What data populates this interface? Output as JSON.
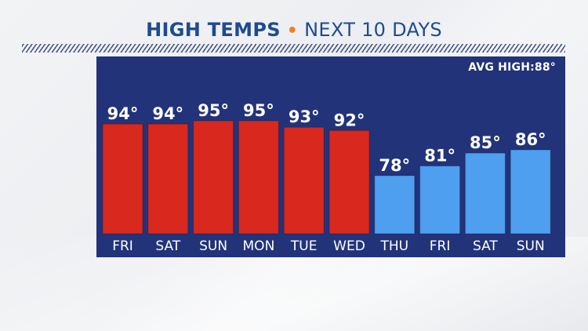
{
  "header": {
    "title_main": "HIGH TEMPS",
    "separator": "•",
    "title_sub": "NEXT 10 DAYS"
  },
  "chart_data": {
    "type": "bar",
    "categories": [
      "FRI",
      "SAT",
      "SUN",
      "MON",
      "TUE",
      "WED",
      "THU",
      "FRI",
      "SAT",
      "SUN"
    ],
    "values": [
      94,
      94,
      95,
      95,
      93,
      92,
      78,
      81,
      85,
      86
    ],
    "value_labels": [
      "94°",
      "94°",
      "95°",
      "95°",
      "93°",
      "92°",
      "78°",
      "81°",
      "85°",
      "86°"
    ],
    "annotation": "AVG HIGH:88°",
    "avg_high": 88,
    "bar_colors": {
      "above_avg": "#d9281e",
      "below_avg": "#4f9ff0"
    },
    "panel_color": "#22337a"
  }
}
